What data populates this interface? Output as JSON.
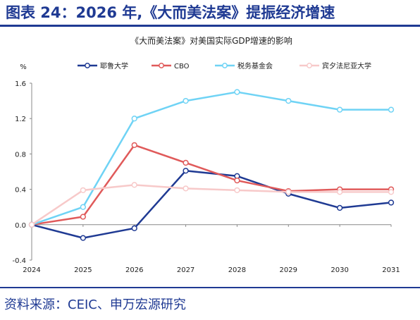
{
  "header": {
    "title": "图表 24：2026 年,《大而美法案》提振经济增速"
  },
  "footer": {
    "source": "资料来源：CEIC、申万宏源研究"
  },
  "chart_data": {
    "type": "line",
    "title": "《大而美法案》对美国实际GDP增速的影响",
    "ylabel": "%",
    "xlabel": "",
    "categories": [
      "2024",
      "2025",
      "2026",
      "2027",
      "2028",
      "2029",
      "2030",
      "2031"
    ],
    "ylim": [
      -0.4,
      1.6
    ],
    "yticks": [
      "1.6",
      "1.2",
      "0.8",
      "0.4",
      "0.0",
      "-0.4"
    ],
    "legend_position": "top",
    "grid": false,
    "series": [
      {
        "name": "耶鲁大学",
        "color": "#1f3a93",
        "values": [
          0.0,
          -0.15,
          -0.04,
          0.61,
          0.55,
          0.35,
          0.19,
          0.25
        ]
      },
      {
        "name": "CBO",
        "color": "#e05a5a",
        "values": [
          0.0,
          0.09,
          0.9,
          0.7,
          0.5,
          0.38,
          0.4,
          0.4
        ]
      },
      {
        "name": "税务基金会",
        "color": "#6fd3f5",
        "values": [
          0.0,
          0.2,
          1.2,
          1.4,
          1.5,
          1.4,
          1.3,
          1.3
        ]
      },
      {
        "name": "宾夕法尼亚大学",
        "color": "#f7c9c9",
        "values": [
          0.0,
          0.39,
          0.45,
          0.41,
          0.39,
          0.37,
          0.37,
          0.37
        ]
      }
    ]
  }
}
